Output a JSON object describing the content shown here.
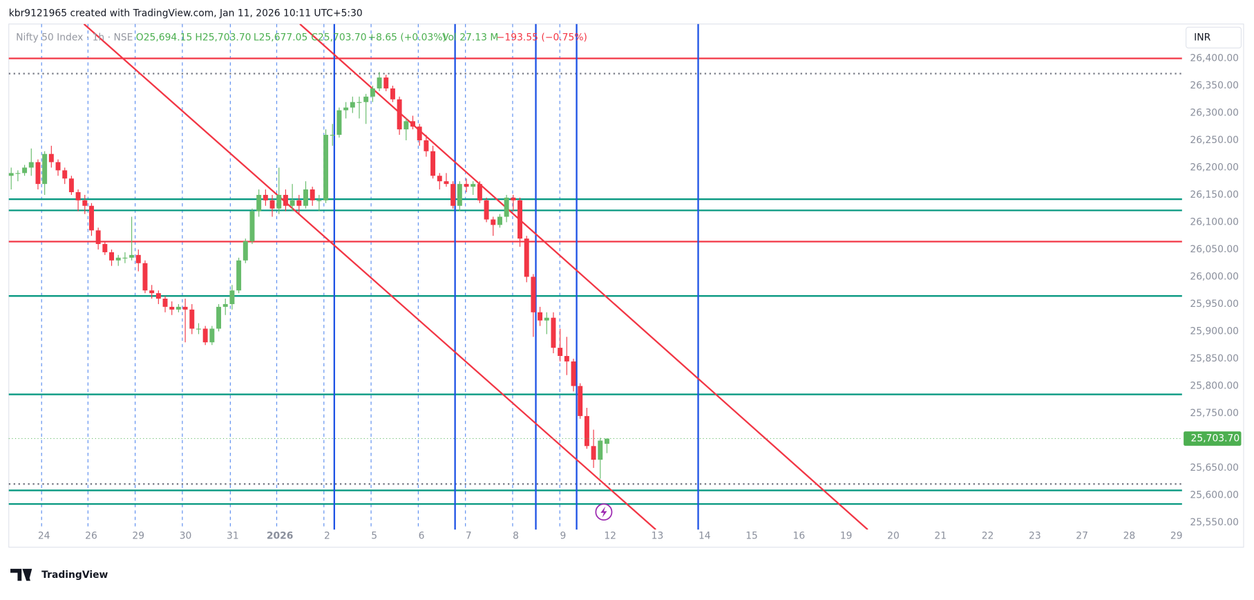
{
  "header": {
    "author_line": "kbr9121965 created with TradingView.com, Jan 11, 2026 10:11 UTC+5:30"
  },
  "footer": {
    "brand": "TradingView"
  },
  "chart_data": {
    "type": "candlestick",
    "title": "Nifty 50 Index · 1h · NSE",
    "ohlc_legend": [
      "O25,694.15",
      "H25,703.70",
      "L25,677.05",
      "C25,703.70",
      "+8.65 (+0.03%)"
    ],
    "volume_label": "Vol 27.13 M",
    "day_change": "−193.55 (−0.75%)",
    "currency": "INR",
    "up_color": "#66bb6a",
    "down_color": "#f23645",
    "last_price": {
      "value": 25703.7,
      "label": "25,703.70"
    },
    "ylim": [
      25537,
      26463
    ],
    "yticks": [
      {
        "value": 26400,
        "label": "26,400.00"
      },
      {
        "value": 26350,
        "label": "26,350.00"
      },
      {
        "value": 26300,
        "label": "26,300.00"
      },
      {
        "value": 26250,
        "label": "26,250.00"
      },
      {
        "value": 26200,
        "label": "26,200.00"
      },
      {
        "value": 26150,
        "label": "26,150.00"
      },
      {
        "value": 26100,
        "label": "26,100.00"
      },
      {
        "value": 26050,
        "label": "26,050.00"
      },
      {
        "value": 26000,
        "label": "26,000.00"
      },
      {
        "value": 25950,
        "label": "25,950.00"
      },
      {
        "value": 25900,
        "label": "25,900.00"
      },
      {
        "value": 25850,
        "label": "25,850.00"
      },
      {
        "value": 25800,
        "label": "25,800.00"
      },
      {
        "value": 25750,
        "label": "25,750.00"
      },
      {
        "value": 25700,
        "label": "25,700.00"
      },
      {
        "value": 25650,
        "label": "25,650.00"
      },
      {
        "value": 25600,
        "label": "25,600.00"
      },
      {
        "value": 25550,
        "label": "25,550.00"
      }
    ],
    "x_labels": [
      "24",
      "26",
      "29",
      "30",
      "31",
      "2026",
      "2",
      "5",
      "6",
      "7",
      "8",
      "9",
      "12",
      "13",
      "14",
      "15",
      "16",
      "19",
      "20",
      "21",
      "22",
      "23",
      "27",
      "28",
      "29"
    ],
    "ohlc": [
      [
        26185,
        26200,
        26160,
        26190
      ],
      [
        26190,
        26195,
        26175,
        26190
      ],
      [
        26190,
        26205,
        26185,
        26200
      ],
      [
        26200,
        26235,
        26185,
        26210
      ],
      [
        26210,
        26215,
        26160,
        26170
      ],
      [
        26170,
        26230,
        26150,
        26225
      ],
      [
        26225,
        26240,
        26200,
        26210
      ],
      [
        26210,
        26215,
        26185,
        26195
      ],
      [
        26195,
        26200,
        26170,
        26180
      ],
      [
        26180,
        26185,
        26150,
        26155
      ],
      [
        26155,
        26160,
        26120,
        26140
      ],
      [
        26140,
        26150,
        26115,
        26130
      ],
      [
        26130,
        26135,
        26075,
        26085
      ],
      [
        26085,
        26090,
        26050,
        26060
      ],
      [
        26060,
        26065,
        26040,
        26045
      ],
      [
        26045,
        26050,
        26020,
        26030
      ],
      [
        26030,
        26040,
        26020,
        26035
      ],
      [
        26035,
        26045,
        26025,
        26035
      ],
      [
        26035,
        26110,
        26030,
        26040
      ],
      [
        26040,
        26050,
        26010,
        26025
      ],
      [
        26025,
        26030,
        25970,
        25975
      ],
      [
        25975,
        25985,
        25960,
        25970
      ],
      [
        25970,
        25975,
        25950,
        25960
      ],
      [
        25960,
        25965,
        25935,
        25945
      ],
      [
        25945,
        25955,
        25930,
        25940
      ],
      [
        25940,
        25950,
        25935,
        25945
      ],
      [
        25945,
        25960,
        25880,
        25940
      ],
      [
        25940,
        25950,
        25895,
        25905
      ],
      [
        25905,
        25915,
        25895,
        25905
      ],
      [
        25905,
        25910,
        25875,
        25880
      ],
      [
        25880,
        25910,
        25875,
        25905
      ],
      [
        25905,
        25950,
        25900,
        25945
      ],
      [
        25945,
        25960,
        25930,
        25950
      ],
      [
        25950,
        25985,
        25940,
        25975
      ],
      [
        25975,
        26035,
        25970,
        26030
      ],
      [
        26030,
        26070,
        26025,
        26065
      ],
      [
        26065,
        26125,
        26060,
        26120
      ],
      [
        26120,
        26160,
        26110,
        26150
      ],
      [
        26150,
        26160,
        26130,
        26140
      ],
      [
        26140,
        26150,
        26110,
        26125
      ],
      [
        26125,
        26200,
        26115,
        26150
      ],
      [
        26150,
        26160,
        26120,
        26130
      ],
      [
        26130,
        26170,
        26120,
        26140
      ],
      [
        26140,
        26150,
        26115,
        26130
      ],
      [
        26130,
        26175,
        26125,
        26160
      ],
      [
        26160,
        26165,
        26130,
        26140
      ],
      [
        26140,
        26150,
        26120,
        26140
      ],
      [
        26140,
        26270,
        26135,
        26260
      ],
      [
        26260,
        26280,
        26240,
        26260
      ],
      [
        26260,
        26310,
        26255,
        26305
      ],
      [
        26305,
        26320,
        26290,
        26310
      ],
      [
        26310,
        26330,
        26300,
        26320
      ],
      [
        26320,
        26330,
        26290,
        26320
      ],
      [
        26320,
        26335,
        26280,
        26330
      ],
      [
        26330,
        26350,
        26320,
        26345
      ],
      [
        26345,
        26375,
        26340,
        26365
      ],
      [
        26365,
        26370,
        26340,
        26345
      ],
      [
        26345,
        26350,
        26320,
        26325
      ],
      [
        26325,
        26330,
        26260,
        26270
      ],
      [
        26270,
        26290,
        26250,
        26285
      ],
      [
        26285,
        26295,
        26270,
        26275
      ],
      [
        26275,
        26280,
        26240,
        26250
      ],
      [
        26250,
        26260,
        26220,
        26230
      ],
      [
        26230,
        26240,
        26180,
        26185
      ],
      [
        26185,
        26190,
        26160,
        26175
      ],
      [
        26175,
        26190,
        26165,
        26170
      ],
      [
        26170,
        26175,
        26125,
        26130
      ],
      [
        26130,
        26175,
        26120,
        26170
      ],
      [
        26170,
        26180,
        26155,
        26165
      ],
      [
        26165,
        26175,
        26150,
        26170
      ],
      [
        26170,
        26175,
        26135,
        26140
      ],
      [
        26140,
        26145,
        26100,
        26105
      ],
      [
        26105,
        26110,
        26075,
        26095
      ],
      [
        26095,
        26115,
        26090,
        26110
      ],
      [
        26110,
        26150,
        26100,
        26145
      ],
      [
        26145,
        26150,
        26120,
        26140
      ],
      [
        26140,
        26145,
        26055,
        26070
      ],
      [
        26070,
        26075,
        25990,
        26000
      ],
      [
        26000,
        26005,
        25890,
        25935
      ],
      [
        25935,
        25945,
        25910,
        25920
      ],
      [
        25920,
        25935,
        25895,
        25925
      ],
      [
        25925,
        25935,
        25860,
        25870
      ],
      [
        25870,
        25905,
        25845,
        25855
      ],
      [
        25855,
        25890,
        25820,
        25845
      ],
      [
        25845,
        25850,
        25790,
        25800
      ],
      [
        25800,
        25805,
        25740,
        25745
      ],
      [
        25745,
        25760,
        25685,
        25690
      ],
      [
        25690,
        25720,
        25650,
        25665
      ],
      [
        25665,
        25705,
        25630,
        25700
      ],
      [
        25694.15,
        25703.7,
        25677.05,
        25703.7
      ]
    ]
  }
}
